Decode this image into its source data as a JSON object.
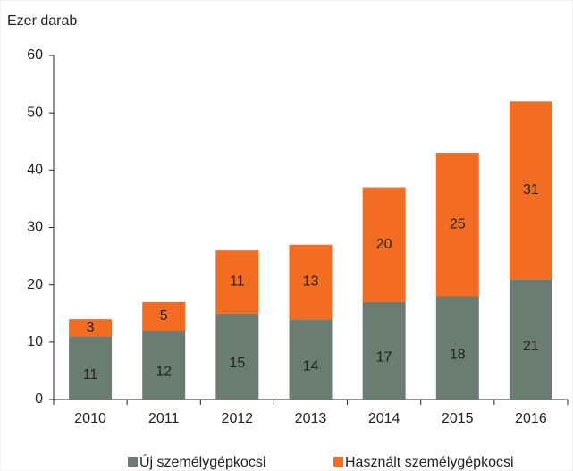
{
  "chart_data": {
    "type": "stacked_bar",
    "y_axis_label": "Ezer darab",
    "categories": [
      "2010",
      "2011",
      "2012",
      "2013",
      "2014",
      "2015",
      "2016"
    ],
    "series": [
      {
        "name": "Új személygépkocsi",
        "color": "#6b7d72",
        "values": [
          11,
          12,
          15,
          14,
          17,
          18,
          21
        ]
      },
      {
        "name": "Használt személygépkocsi",
        "color": "#f26c22",
        "values": [
          3,
          5,
          11,
          13,
          20,
          25,
          31
        ]
      }
    ],
    "ylim": [
      0,
      60
    ],
    "yticks": [
      0,
      10,
      20,
      30,
      40,
      50,
      60
    ],
    "grid": false,
    "legend": "bottom"
  }
}
